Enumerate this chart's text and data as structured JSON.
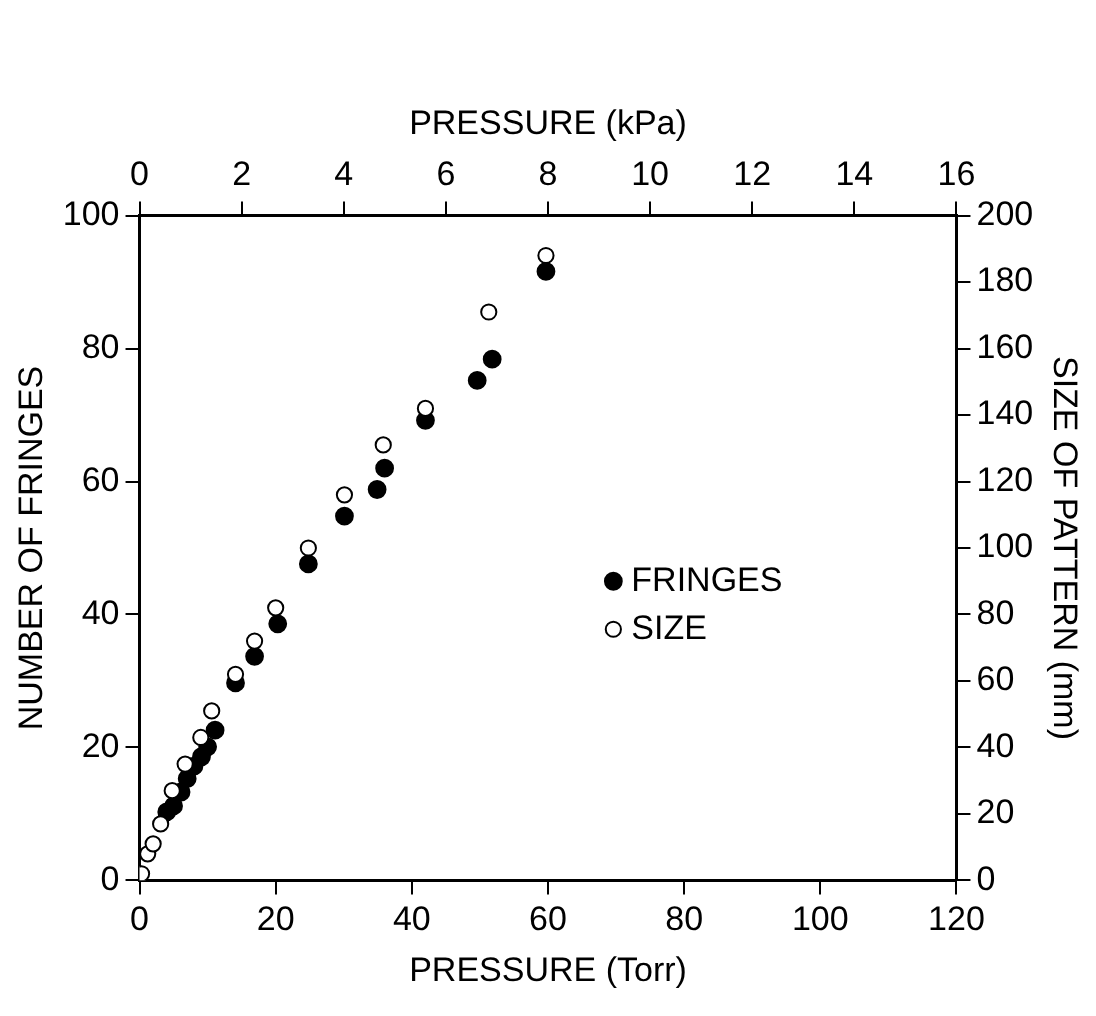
{
  "chart_data": {
    "type": "scatter",
    "xlabel": "PRESSURE (Torr)",
    "x2label": "PRESSURE (kPa)",
    "ylabel": "NUMBER OF FRINGES",
    "y2label": "SIZE OF PATTERN (mm)",
    "xlim": [
      0,
      120
    ],
    "xticks": [
      0,
      20,
      40,
      60,
      80,
      100,
      120
    ],
    "x2lim": [
      0,
      16
    ],
    "x2ticks": [
      0,
      2,
      4,
      6,
      8,
      10,
      12,
      14,
      16
    ],
    "ylim": [
      0,
      100
    ],
    "yticks": [
      0,
      20,
      40,
      60,
      80,
      100
    ],
    "y2lim": [
      0,
      200
    ],
    "y2ticks": [
      0,
      20,
      40,
      60,
      80,
      100,
      120,
      140,
      160,
      180,
      200
    ],
    "grid": false,
    "legend": "right",
    "marker": "circle",
    "series": [
      {
        "name": "FRINGES",
        "color": "#000000",
        "x": [
          4.0,
          5.0,
          6.1,
          7.0,
          8.0,
          9.1,
          10.0,
          11.1,
          14.1,
          16.9,
          20.3,
          24.8,
          30.1,
          34.9,
          36,
          42,
          49.6,
          51.8,
          59.7
        ],
        "values": [
          10.3,
          11.2,
          13.3,
          15.3,
          17.2,
          18.6,
          20.1,
          22.6,
          29.7,
          33.7,
          38.6,
          47.6,
          54.8,
          58.8,
          62,
          69.2,
          75.2,
          78.4,
          91.6
        ]
      },
      {
        "name": "SIZE",
        "color": "#000000",
        "axis": "y2",
        "x": [
          0.3,
          1.2,
          2.0,
          3.1,
          4.8,
          6.7,
          9.0,
          10.6,
          14.1,
          16.9,
          20,
          24.8,
          30.1,
          35.8,
          42,
          51.3,
          59.7
        ],
        "values": [
          2,
          8,
          11,
          17,
          27,
          35,
          43,
          51,
          62,
          72,
          82,
          100,
          116,
          131,
          142,
          171,
          188
        ]
      }
    ]
  }
}
